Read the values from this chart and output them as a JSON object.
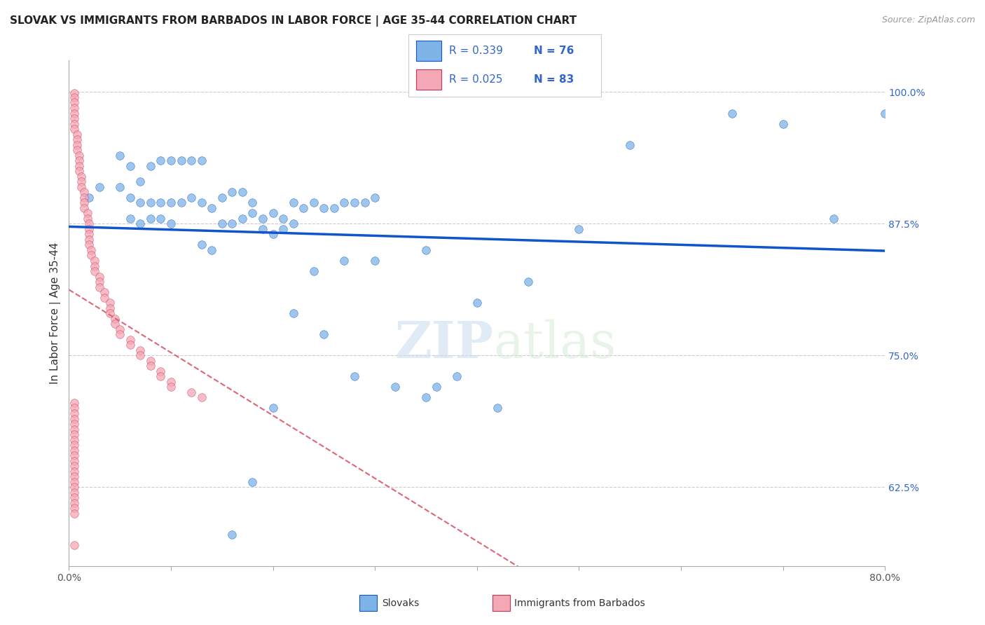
{
  "title": "SLOVAK VS IMMIGRANTS FROM BARBADOS IN LABOR FORCE | AGE 35-44 CORRELATION CHART",
  "source": "Source: ZipAtlas.com",
  "ylabel": "In Labor Force | Age 35-44",
  "xlim": [
    0.0,
    0.8
  ],
  "ylim": [
    0.55,
    1.03
  ],
  "ytick_positions": [
    0.625,
    0.75,
    0.875,
    1.0
  ],
  "ytick_labels": [
    "62.5%",
    "75.0%",
    "87.5%",
    "100.0%"
  ],
  "blue_color": "#7EB3E8",
  "pink_color": "#F4A7B5",
  "trendline_blue": "#1155CC",
  "trendline_pink": "#DD6677",
  "watermark_zip": "ZIP",
  "watermark_atlas": "atlas",
  "blue_x": [
    0.02,
    0.03,
    0.05,
    0.06,
    0.07,
    0.08,
    0.09,
    0.1,
    0.11,
    0.12,
    0.13,
    0.14,
    0.15,
    0.16,
    0.17,
    0.18,
    0.19,
    0.2,
    0.21,
    0.22,
    0.23,
    0.24,
    0.25,
    0.26,
    0.27,
    0.28,
    0.29,
    0.3,
    0.05,
    0.06,
    0.07,
    0.08,
    0.09,
    0.1,
    0.11,
    0.12,
    0.13,
    0.06,
    0.07,
    0.08,
    0.09,
    0.1,
    0.15,
    0.16,
    0.17,
    0.18,
    0.19,
    0.2,
    0.21,
    0.22,
    0.13,
    0.14,
    0.24,
    0.27,
    0.3,
    0.35,
    0.4,
    0.45,
    0.5,
    0.55,
    0.65,
    0.7,
    0.75,
    0.8,
    0.35,
    0.38,
    0.42,
    0.28,
    0.32,
    0.36,
    0.22,
    0.25,
    0.2,
    0.18,
    0.16
  ],
  "blue_y": [
    0.9,
    0.91,
    0.91,
    0.9,
    0.895,
    0.895,
    0.895,
    0.895,
    0.895,
    0.9,
    0.895,
    0.89,
    0.9,
    0.905,
    0.905,
    0.885,
    0.88,
    0.885,
    0.88,
    0.895,
    0.89,
    0.895,
    0.89,
    0.89,
    0.895,
    0.895,
    0.895,
    0.9,
    0.94,
    0.93,
    0.915,
    0.93,
    0.935,
    0.935,
    0.935,
    0.935,
    0.935,
    0.88,
    0.875,
    0.88,
    0.88,
    0.875,
    0.875,
    0.875,
    0.88,
    0.895,
    0.87,
    0.865,
    0.87,
    0.875,
    0.855,
    0.85,
    0.83,
    0.84,
    0.84,
    0.85,
    0.8,
    0.82,
    0.87,
    0.95,
    0.98,
    0.97,
    0.88,
    0.98,
    0.71,
    0.73,
    0.7,
    0.73,
    0.72,
    0.72,
    0.79,
    0.77,
    0.7,
    0.63,
    0.58
  ],
  "pink_x": [
    0.005,
    0.005,
    0.005,
    0.005,
    0.005,
    0.005,
    0.005,
    0.005,
    0.008,
    0.008,
    0.008,
    0.008,
    0.01,
    0.01,
    0.01,
    0.01,
    0.012,
    0.012,
    0.012,
    0.015,
    0.015,
    0.015,
    0.015,
    0.018,
    0.018,
    0.02,
    0.02,
    0.02,
    0.02,
    0.02,
    0.022,
    0.022,
    0.025,
    0.025,
    0.025,
    0.03,
    0.03,
    0.03,
    0.035,
    0.035,
    0.04,
    0.04,
    0.04,
    0.045,
    0.045,
    0.05,
    0.05,
    0.06,
    0.06,
    0.07,
    0.07,
    0.08,
    0.08,
    0.09,
    0.09,
    0.1,
    0.1,
    0.12,
    0.13,
    0.005,
    0.005,
    0.005,
    0.005,
    0.005,
    0.005,
    0.005,
    0.005,
    0.005,
    0.005,
    0.005,
    0.005,
    0.005,
    0.005,
    0.005,
    0.005,
    0.005,
    0.005,
    0.005,
    0.005,
    0.005,
    0.005,
    0.005
  ],
  "pink_y": [
    0.999,
    0.995,
    0.99,
    0.985,
    0.98,
    0.975,
    0.97,
    0.965,
    0.96,
    0.955,
    0.95,
    0.945,
    0.94,
    0.935,
    0.93,
    0.925,
    0.92,
    0.915,
    0.91,
    0.905,
    0.9,
    0.895,
    0.89,
    0.885,
    0.88,
    0.875,
    0.87,
    0.865,
    0.86,
    0.855,
    0.85,
    0.845,
    0.84,
    0.835,
    0.83,
    0.825,
    0.82,
    0.815,
    0.81,
    0.805,
    0.8,
    0.795,
    0.79,
    0.785,
    0.78,
    0.775,
    0.77,
    0.765,
    0.76,
    0.755,
    0.75,
    0.745,
    0.74,
    0.735,
    0.73,
    0.725,
    0.72,
    0.715,
    0.71,
    0.705,
    0.7,
    0.695,
    0.69,
    0.685,
    0.68,
    0.675,
    0.67,
    0.665,
    0.66,
    0.655,
    0.65,
    0.645,
    0.64,
    0.635,
    0.63,
    0.625,
    0.62,
    0.615,
    0.61,
    0.605,
    0.6,
    0.57
  ]
}
